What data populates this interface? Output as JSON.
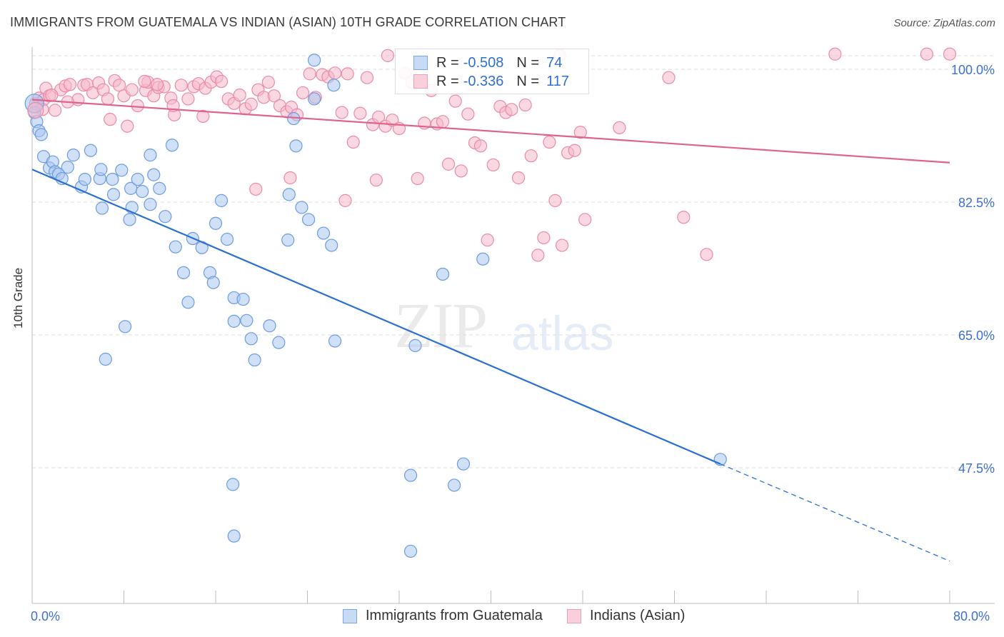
{
  "title": "IMMIGRANTS FROM GUATEMALA VS INDIAN (ASIAN) 10TH GRADE CORRELATION CHART",
  "source": "Source: ZipAtlas.com",
  "watermark_a": "ZIP",
  "watermark_b": "atlas",
  "legend_top": {
    "r_label": "R =",
    "n_label": "N =",
    "rows": [
      {
        "r": "-0.508",
        "n": "74"
      },
      {
        "r": "-0.336",
        "n": "117"
      }
    ]
  },
  "colors": {
    "blue_fill": "#a9c6ee",
    "blue_stroke": "#6b9be0",
    "blue_line": "#2a6fd2",
    "pink_fill": "#f5b8cb",
    "pink_stroke": "#e98aa8",
    "pink_line": "#e0628f",
    "grid": "#dcdcdc",
    "tick_text": "#3d6fd0"
  },
  "chart_data": {
    "type": "scatter",
    "title": "IMMIGRANTS FROM GUATEMALA VS INDIAN (ASIAN) 10TH GRADE CORRELATION CHART",
    "xlabel": "",
    "ylabel": "10th Grade",
    "xlim": [
      0,
      80
    ],
    "ylim": [
      35,
      103
    ],
    "x_tick_labels": [
      "0.0%",
      "80.0%"
    ],
    "y_ticks": [
      47.5,
      65.0,
      82.5,
      100.0
    ],
    "y_tick_labels": [
      "47.5%",
      "65.0%",
      "82.5%",
      "100.0%"
    ],
    "grid": true,
    "legend_position": "bottom",
    "series": [
      {
        "name": "Immigrants from Guatemala",
        "color": "#a9c6ee",
        "trend": {
          "x0": 0,
          "y0": 86.8,
          "x1": 60,
          "y1": 48.0,
          "dashed_to_x": 80,
          "dashed_to_y": 35.2
        },
        "points": [
          [
            0.2,
            94.3
          ],
          [
            0.4,
            93.1
          ],
          [
            0.6,
            91.9
          ],
          [
            0.8,
            91.4
          ],
          [
            1.0,
            88.5
          ],
          [
            1.5,
            87.0
          ],
          [
            1.8,
            87.8
          ],
          [
            2.0,
            86.5
          ],
          [
            2.3,
            86.2
          ],
          [
            2.6,
            85.6
          ],
          [
            3.1,
            87.1
          ],
          [
            3.6,
            88.7
          ],
          [
            4.3,
            84.5
          ],
          [
            4.6,
            85.5
          ],
          [
            5.1,
            89.3
          ],
          [
            5.9,
            85.6
          ],
          [
            6.0,
            86.8
          ],
          [
            6.1,
            81.7
          ],
          [
            7.0,
            85.5
          ],
          [
            7.1,
            83.5
          ],
          [
            7.8,
            86.7
          ],
          [
            8.5,
            80.2
          ],
          [
            8.6,
            84.3
          ],
          [
            8.7,
            81.8
          ],
          [
            9.2,
            85.5
          ],
          [
            9.6,
            83.9
          ],
          [
            10.3,
            82.2
          ],
          [
            10.3,
            88.7
          ],
          [
            10.6,
            86.1
          ],
          [
            11.1,
            84.3
          ],
          [
            11.6,
            80.6
          ],
          [
            12.2,
            90.0
          ],
          [
            12.5,
            76.6
          ],
          [
            13.2,
            73.2
          ],
          [
            13.6,
            69.3
          ],
          [
            14.0,
            77.7
          ],
          [
            14.8,
            76.5
          ],
          [
            15.5,
            73.2
          ],
          [
            15.8,
            71.9
          ],
          [
            16.0,
            79.7
          ],
          [
            16.5,
            82.7
          ],
          [
            17.0,
            77.6
          ],
          [
            17.6,
            69.9
          ],
          [
            17.6,
            66.8
          ],
          [
            18.4,
            69.7
          ],
          [
            18.7,
            66.9
          ],
          [
            19.1,
            64.5
          ],
          [
            19.4,
            61.7
          ],
          [
            20.7,
            66.2
          ],
          [
            21.5,
            64.0
          ],
          [
            22.3,
            77.5
          ],
          [
            22.4,
            83.5
          ],
          [
            22.8,
            93.5
          ],
          [
            23.0,
            89.9
          ],
          [
            23.5,
            81.8
          ],
          [
            24.1,
            80.2
          ],
          [
            24.6,
            101.2
          ],
          [
            25.4,
            78.4
          ],
          [
            26.1,
            76.8
          ],
          [
            26.4,
            64.2
          ],
          [
            24.6,
            96.1
          ],
          [
            8.1,
            66.1
          ],
          [
            6.4,
            61.8
          ],
          [
            26.3,
            97.9
          ],
          [
            33.4,
            63.6
          ],
          [
            35.8,
            73.0
          ],
          [
            37.6,
            48.0
          ],
          [
            39.3,
            75.0
          ],
          [
            17.5,
            45.3
          ],
          [
            33.0,
            46.5
          ],
          [
            17.6,
            38.5
          ],
          [
            36.8,
            45.2
          ],
          [
            33.0,
            36.5
          ],
          [
            60.0,
            48.6
          ]
        ]
      },
      {
        "name": "Indians (Asian)",
        "color": "#f5b8cb",
        "trend": {
          "x0": 0,
          "y0": 96.0,
          "x1": 80,
          "y1": 87.7
        },
        "points": [
          [
            0.3,
            95.5
          ],
          [
            0.6,
            96.2
          ],
          [
            1.0,
            96.0
          ],
          [
            1.2,
            97.5
          ],
          [
            1.5,
            96.5
          ],
          [
            2.0,
            94.6
          ],
          [
            2.5,
            97.3
          ],
          [
            2.9,
            97.8
          ],
          [
            3.3,
            98.0
          ],
          [
            4.0,
            96.0
          ],
          [
            4.5,
            97.9
          ],
          [
            4.8,
            98.0
          ],
          [
            5.3,
            96.9
          ],
          [
            5.8,
            98.2
          ],
          [
            6.2,
            97.3
          ],
          [
            6.6,
            96.1
          ],
          [
            7.2,
            98.5
          ],
          [
            7.6,
            97.9
          ],
          [
            8.0,
            96.5
          ],
          [
            8.3,
            92.5
          ],
          [
            8.7,
            97.3
          ],
          [
            9.2,
            95.2
          ],
          [
            9.9,
            97.2
          ],
          [
            10.1,
            98.3
          ],
          [
            10.6,
            96.5
          ],
          [
            11.0,
            97.6
          ],
          [
            11.5,
            97.7
          ],
          [
            12.1,
            96.2
          ],
          [
            12.4,
            94.0
          ],
          [
            13.0,
            97.9
          ],
          [
            13.6,
            96.1
          ],
          [
            14.1,
            97.7
          ],
          [
            14.5,
            98.1
          ],
          [
            15.1,
            97.5
          ],
          [
            15.6,
            98.3
          ],
          [
            16.1,
            99.0
          ],
          [
            16.5,
            98.4
          ],
          [
            17.1,
            96.1
          ],
          [
            17.6,
            95.5
          ],
          [
            18.1,
            96.6
          ],
          [
            18.6,
            94.8
          ],
          [
            19.1,
            95.4
          ],
          [
            19.7,
            97.3
          ],
          [
            20.2,
            96.3
          ],
          [
            20.6,
            98.3
          ],
          [
            21.1,
            96.5
          ],
          [
            21.6,
            95.2
          ],
          [
            22.2,
            94.4
          ],
          [
            22.6,
            95.0
          ],
          [
            23.1,
            94.0
          ],
          [
            23.6,
            96.9
          ],
          [
            24.2,
            99.4
          ],
          [
            24.7,
            96.3
          ],
          [
            25.3,
            99.3
          ],
          [
            25.8,
            99.0
          ],
          [
            26.4,
            99.5
          ],
          [
            27.0,
            94.3
          ],
          [
            27.5,
            99.4
          ],
          [
            28.0,
            90.4
          ],
          [
            28.6,
            94.2
          ],
          [
            29.2,
            98.9
          ],
          [
            29.7,
            92.7
          ],
          [
            30.2,
            93.7
          ],
          [
            30.8,
            92.5
          ],
          [
            31.4,
            93.3
          ],
          [
            32.0,
            92.2
          ],
          [
            32.5,
            99.5
          ],
          [
            33.1,
            98.3
          ],
          [
            33.6,
            85.6
          ],
          [
            34.2,
            92.9
          ],
          [
            34.8,
            97.2
          ],
          [
            35.3,
            92.8
          ],
          [
            35.8,
            93.1
          ],
          [
            36.3,
            87.5
          ],
          [
            36.9,
            95.8
          ],
          [
            37.4,
            86.6
          ],
          [
            38.0,
            94.1
          ],
          [
            38.6,
            90.3
          ],
          [
            39.1,
            89.9
          ],
          [
            39.7,
            77.5
          ],
          [
            40.2,
            87.4
          ],
          [
            40.8,
            95.1
          ],
          [
            41.3,
            94.3
          ],
          [
            41.8,
            94.7
          ],
          [
            42.4,
            85.7
          ],
          [
            43.0,
            95.3
          ],
          [
            43.5,
            88.6
          ],
          [
            44.1,
            75.5
          ],
          [
            44.6,
            77.8
          ],
          [
            45.1,
            90.4
          ],
          [
            45.6,
            82.7
          ],
          [
            46.2,
            76.8
          ],
          [
            46.7,
            89.0
          ],
          [
            47.3,
            89.3
          ],
          [
            47.8,
            91.7
          ],
          [
            48.2,
            80.2
          ],
          [
            51.2,
            92.3
          ],
          [
            55.5,
            98.9
          ],
          [
            56.8,
            80.5
          ],
          [
            58.8,
            75.6
          ],
          [
            70.0,
            102.0
          ],
          [
            78.0,
            102.0
          ],
          [
            80.0,
            102.0
          ],
          [
            46.0,
            101.8
          ],
          [
            31.0,
            101.8
          ],
          [
            10.9,
            98.0
          ],
          [
            12.3,
            95.2
          ],
          [
            14.9,
            93.8
          ],
          [
            19.5,
            84.2
          ],
          [
            22.5,
            85.7
          ],
          [
            30.0,
            85.4
          ],
          [
            27.3,
            82.7
          ],
          [
            3.1,
            95.7
          ],
          [
            1.7,
            96.6
          ],
          [
            0.9,
            94.7
          ],
          [
            6.8,
            93.4
          ],
          [
            9.8,
            98.4
          ]
        ]
      }
    ]
  },
  "bottom_legend": [
    {
      "label": "Immigrants from Guatemala"
    },
    {
      "label": "Indians (Asian)"
    }
  ]
}
